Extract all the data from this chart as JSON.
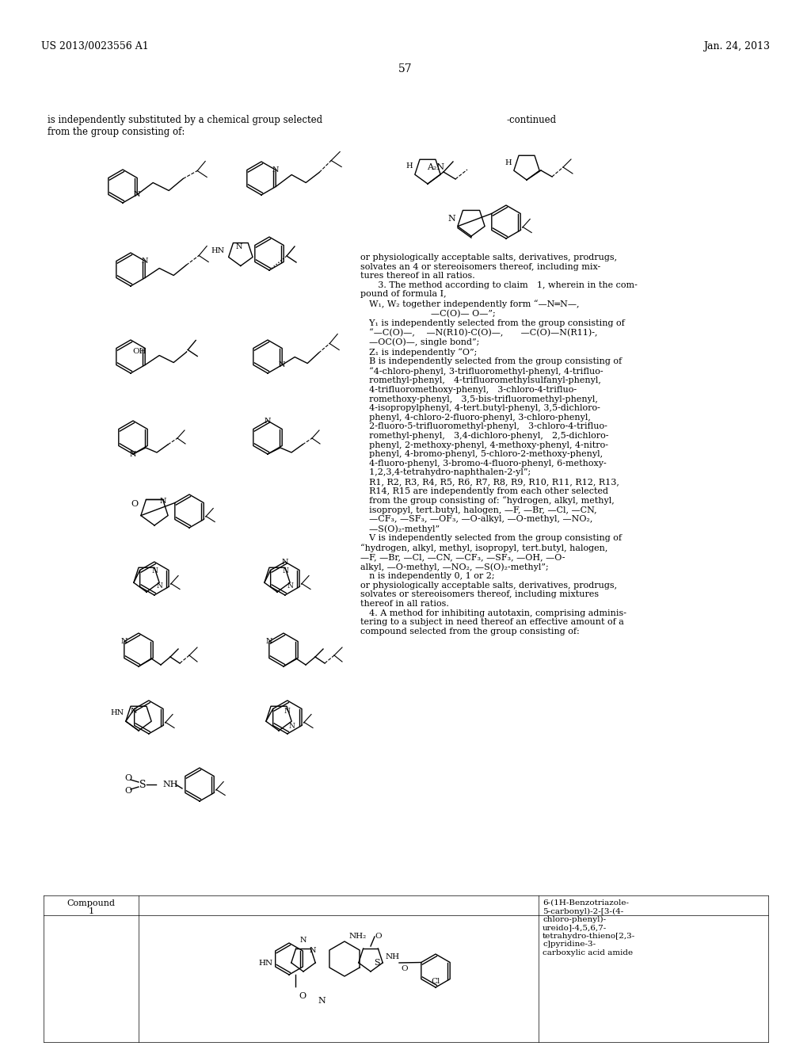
{
  "background_color": "#ffffff",
  "page_number": "57",
  "header_left": "US 2013/0023556 A1",
  "header_right": "Jan. 24, 2013",
  "left_text": "is independently substituted by a chemical group selected\nfrom the group consisting of:",
  "right_continued": "-continued",
  "right_text_block": "or physiologically acceptable salts, derivatives, prodrugs,\nsolvates an 4 or stereoisomers thereof, including mix-\ntures thereof in all ratios.\n  3. The method according to claim 1, wherein in the com-\npound of formula I,\n W₁, W₂ together independently form “—N═N—,\n        —C(O)— O—”;\n Y₁ is independently selected from the group consisting of\n “—C(O)—,  —N(R10)-C(O)—,  —C(O)—N(R11)-,\n —OC(O)—, single bond”;\n Z₁ is independently “O”;\n B is independently selected from the group consisting of\n “4-chloro-phenyl, 3-trifluoromethyl-phenyl, 4-trifluo-\n romethyl-phenyl, 4-trifluoromethylsulfanyl-phenyl,\n 4-trifluoromethoxy-phenyl, 3-chloro-4-trifluo-\n romethoxy-phenyl, 3,5-bis-trifluoromethyl-phenyl,\n 4-isopropylphenyl, 4-tert.butyl-phenyl, 3,5-dichloro-\n phenyl, 4-chloro-2-fluoro-phenyl, 3-chloro-phenyl,\n 2-fluoro-5-trifluoromethyl-phenyl, 3-chloro-4-trifluo-\n romethyl-phenyl, 3,4-dichloro-phenyl, 2,5-dichloro-\n phenyl, 2-methoxy-phenyl, 4-methoxy-phenyl, 4-nitro-\n phenyl, 4-bromo-phenyl, 5-chloro-2-methoxy-phenyl,\n 4-fluoro-phenyl, 3-bromo-4-fluoro-phenyl, 6-methoxy-\n 1,2,3,4-tetrahydro-naphthalen-2-yl”;\n R1, R2, R3, R4, R5, R6, R7, R8, R9, R10, R11, R12, R13,\n R14, R15 are independently from each other selected\n from the group consisting of: “hydrogen, alkyl, methyl,\n isopropyl, tert.butyl, halogen, —F, —Br, —Cl, —CN,\n —CF₃, —SF₃, —OF₃, —O-alkyl, —O-methyl, —NO₂,\n —S(O)₂-methyl”\n V is independently selected from the group consisting of\n“hydrogen, alkyl, methyl, isopropyl, tert.butyl, halogen,\n—F, —Br, —Cl, —CN, —CF₃, —SF₃, —OH, —O-\nalkyl, —O-methyl, —NO₂, —S(O)₂-methyl”;\n n is independently 0, 1 or 2;\nor physiologically acceptable salts, derivatives, prodrugs,\nsolvates or stereoisomers thereof, including mixtures\nthereof in all ratios.\n 4. A method for inhibiting autotaxin, comprising adminis-\ntering to a subject in need thereof an effective amount of a\ncompound selected from the group consisting of:",
  "bottom_table_label": "Compound\n1",
  "bottom_compound_name": "6-(1H-Benzotriazole-\n5-carbonyl)-2-[3-(4-\nchloro-phenyl)-\nureido]-4,5,6,7-\ntetrahydro-thieno[2,3-\nc]pyridine-3-\ncarboxylic acid amide"
}
